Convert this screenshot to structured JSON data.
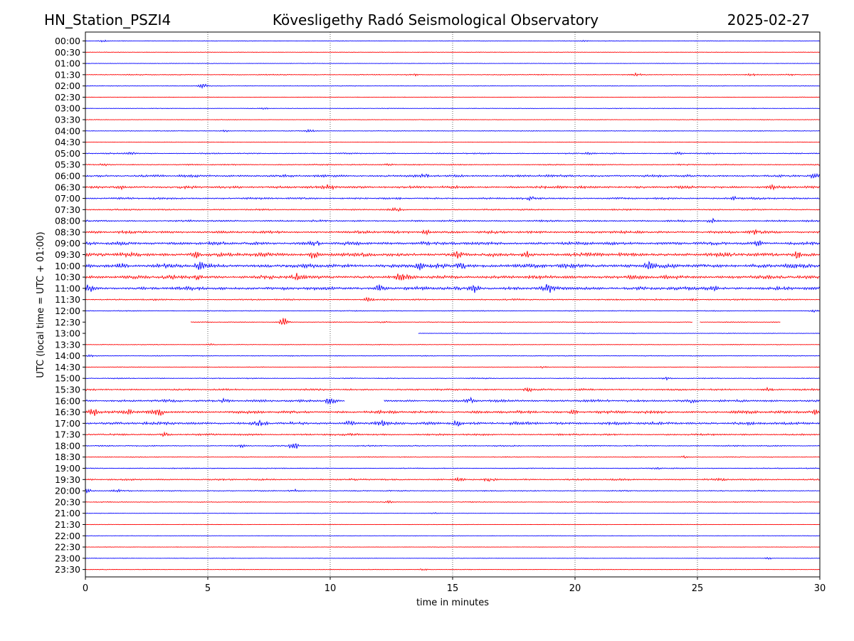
{
  "header": {
    "station": "HN_Station_PSZI4",
    "title": "Kövesligethy Radó Seismological Observatory",
    "date": "2025-02-27"
  },
  "chart_data": {
    "type": "line",
    "title": "Kövesligethy Radó Seismological Observatory",
    "xlabel": "time in minutes",
    "ylabel": "UTC (local time = UTC + 01:00)",
    "xlim": [
      0,
      30
    ],
    "xticks": [
      0,
      5,
      10,
      15,
      20,
      25,
      30
    ],
    "grid": "vertical dotted lines at 5, 10, 15, 20, 25",
    "colors": {
      "even_hour": "#0000ff",
      "half_hour": "#ff0000"
    },
    "rows": [
      {
        "label": "00:00",
        "color": "#0000ff",
        "coverage": [
          [
            0,
            30
          ]
        ],
        "activity": 0.5,
        "events": [
          [
            0.7,
            1.2
          ],
          [
            20.4,
            1.0
          ]
        ]
      },
      {
        "label": "00:30",
        "color": "#ff0000",
        "coverage": [
          [
            0,
            30
          ]
        ],
        "activity": 0.4,
        "events": []
      },
      {
        "label": "01:00",
        "color": "#0000ff",
        "coverage": [
          [
            0,
            30
          ]
        ],
        "activity": 0.4,
        "events": []
      },
      {
        "label": "01:30",
        "color": "#ff0000",
        "coverage": [
          [
            0,
            30
          ]
        ],
        "activity": 0.8,
        "events": [
          [
            13.4,
            1.3
          ],
          [
            22.5,
            1.6
          ],
          [
            27.2,
            1.5
          ],
          [
            28.8,
            1.2
          ]
        ]
      },
      {
        "label": "02:00",
        "color": "#0000ff",
        "coverage": [
          [
            0,
            30
          ]
        ],
        "activity": 0.5,
        "events": [
          [
            4.8,
            3.0
          ]
        ]
      },
      {
        "label": "02:30",
        "color": "#ff0000",
        "coverage": [
          [
            0,
            30
          ]
        ],
        "activity": 0.4,
        "events": []
      },
      {
        "label": "03:00",
        "color": "#0000ff",
        "coverage": [
          [
            0,
            30
          ]
        ],
        "activity": 0.5,
        "events": [
          [
            7.3,
            1.5
          ]
        ]
      },
      {
        "label": "03:30",
        "color": "#ff0000",
        "coverage": [
          [
            0,
            30
          ]
        ],
        "activity": 0.5,
        "events": [
          [
            27.8,
            1.0
          ]
        ]
      },
      {
        "label": "04:00",
        "color": "#0000ff",
        "coverage": [
          [
            0,
            30
          ]
        ],
        "activity": 0.6,
        "events": [
          [
            9.2,
            2.5
          ],
          [
            5.7,
            1.2
          ]
        ]
      },
      {
        "label": "04:30",
        "color": "#ff0000",
        "coverage": [
          [
            0,
            30
          ]
        ],
        "activity": 0.4,
        "events": []
      },
      {
        "label": "05:00",
        "color": "#0000ff",
        "coverage": [
          [
            0,
            30
          ]
        ],
        "activity": 1.0,
        "events": [
          [
            1.9,
            1.8
          ],
          [
            20.6,
            1.5
          ],
          [
            24.2,
            1.8
          ]
        ]
      },
      {
        "label": "05:30",
        "color": "#ff0000",
        "coverage": [
          [
            0,
            30
          ]
        ],
        "activity": 1.0,
        "events": [
          [
            0.8,
            1.5
          ],
          [
            12.4,
            1.4
          ]
        ]
      },
      {
        "label": "06:00",
        "color": "#0000ff",
        "coverage": [
          [
            0,
            30
          ]
        ],
        "activity": 2.0,
        "events": [
          [
            13.8,
            2.5
          ],
          [
            29.8,
            3.5
          ]
        ]
      },
      {
        "label": "06:30",
        "color": "#ff0000",
        "coverage": [
          [
            0,
            30
          ]
        ],
        "activity": 2.2,
        "events": [
          [
            1.4,
            3.0
          ],
          [
            10.0,
            3.0
          ],
          [
            28.1,
            3.2
          ]
        ]
      },
      {
        "label": "07:00",
        "color": "#0000ff",
        "coverage": [
          [
            0,
            30
          ]
        ],
        "activity": 1.6,
        "events": [
          [
            26.5,
            2.0
          ],
          [
            18.2,
            1.5
          ]
        ]
      },
      {
        "label": "07:30",
        "color": "#ff0000",
        "coverage": [
          [
            0,
            30
          ]
        ],
        "activity": 1.2,
        "events": [
          [
            12.7,
            2.0
          ]
        ]
      },
      {
        "label": "08:00",
        "color": "#0000ff",
        "coverage": [
          [
            0,
            30
          ]
        ],
        "activity": 1.5,
        "events": [
          [
            25.6,
            2.8
          ]
        ]
      },
      {
        "label": "08:30",
        "color": "#ff0000",
        "coverage": [
          [
            0,
            30
          ]
        ],
        "activity": 2.2,
        "events": [
          [
            13.9,
            2.5
          ],
          [
            27.3,
            3.0
          ]
        ]
      },
      {
        "label": "09:00",
        "color": "#0000ff",
        "coverage": [
          [
            0,
            30
          ]
        ],
        "activity": 2.6,
        "events": [
          [
            9.4,
            3.5
          ],
          [
            13.8,
            3.0
          ],
          [
            27.5,
            3.5
          ]
        ]
      },
      {
        "label": "09:30",
        "color": "#ff0000",
        "coverage": [
          [
            0,
            30
          ]
        ],
        "activity": 3.2,
        "events": [
          [
            4.5,
            4.5
          ],
          [
            9.3,
            5.0
          ],
          [
            15.2,
            4.5
          ],
          [
            18.0,
            4.0
          ],
          [
            29.1,
            6.0
          ]
        ]
      },
      {
        "label": "10:00",
        "color": "#0000ff",
        "coverage": [
          [
            0,
            30
          ]
        ],
        "activity": 3.4,
        "events": [
          [
            1.5,
            4.5
          ],
          [
            4.7,
            4.5
          ],
          [
            13.6,
            5.0
          ],
          [
            15.3,
            6.0
          ],
          [
            23.0,
            4.5
          ]
        ]
      },
      {
        "label": "10:30",
        "color": "#ff0000",
        "coverage": [
          [
            0,
            30
          ]
        ],
        "activity": 3.0,
        "events": [
          [
            4.6,
            4.0
          ],
          [
            8.6,
            4.5
          ],
          [
            12.9,
            4.0
          ]
        ]
      },
      {
        "label": "11:00",
        "color": "#0000ff",
        "coverage": [
          [
            0,
            30
          ]
        ],
        "activity": 2.8,
        "events": [
          [
            0.1,
            5.5
          ],
          [
            12.0,
            4.0
          ],
          [
            15.9,
            5.0
          ],
          [
            18.9,
            6.0
          ],
          [
            25.6,
            5.0
          ]
        ]
      },
      {
        "label": "11:30",
        "color": "#ff0000",
        "coverage": [
          [
            0,
            30
          ]
        ],
        "activity": 1.2,
        "events": [
          [
            11.6,
            3.0
          ],
          [
            24.8,
            1.8
          ]
        ]
      },
      {
        "label": "12:00",
        "color": "#0000ff",
        "coverage": [
          [
            0,
            30
          ]
        ],
        "activity": 0.7,
        "events": [
          [
            29.8,
            1.8
          ]
        ]
      },
      {
        "label": "12:30",
        "color": "#ff0000",
        "coverage": [
          [
            4.3,
            24.8
          ],
          [
            25.1,
            28.4
          ]
        ],
        "activity": 0.6,
        "events": [
          [
            8.1,
            7.0
          ],
          [
            12.2,
            1.2
          ]
        ]
      },
      {
        "label": "13:00",
        "color": "#0000ff",
        "coverage": [
          [
            13.6,
            30
          ]
        ],
        "activity": 0.5,
        "events": []
      },
      {
        "label": "13:30",
        "color": "#ff0000",
        "coverage": [
          [
            0,
            30
          ]
        ],
        "activity": 0.6,
        "events": [
          [
            5.1,
            1.2
          ]
        ]
      },
      {
        "label": "14:00",
        "color": "#0000ff",
        "coverage": [
          [
            0,
            30
          ]
        ],
        "activity": 0.7,
        "events": [
          [
            0.2,
            1.5
          ]
        ]
      },
      {
        "label": "14:30",
        "color": "#ff0000",
        "coverage": [
          [
            0,
            30
          ]
        ],
        "activity": 0.6,
        "events": [
          [
            18.7,
            1.4
          ]
        ]
      },
      {
        "label": "15:00",
        "color": "#0000ff",
        "coverage": [
          [
            0,
            30
          ]
        ],
        "activity": 0.8,
        "events": [
          [
            23.7,
            2.5
          ]
        ]
      },
      {
        "label": "15:30",
        "color": "#ff0000",
        "coverage": [
          [
            0,
            30
          ]
        ],
        "activity": 1.5,
        "events": [
          [
            18.1,
            2.5
          ],
          [
            27.9,
            2.2
          ]
        ]
      },
      {
        "label": "16:00",
        "color": "#0000ff",
        "coverage": [
          [
            0,
            10.6
          ],
          [
            12.2,
            30
          ]
        ],
        "activity": 2.0,
        "events": [
          [
            5.7,
            3.0
          ],
          [
            10.0,
            5.5
          ],
          [
            15.7,
            3.0
          ],
          [
            24.8,
            2.5
          ]
        ]
      },
      {
        "label": "16:30",
        "color": "#ff0000",
        "coverage": [
          [
            0,
            30
          ]
        ],
        "activity": 2.4,
        "events": [
          [
            0.3,
            5.5
          ],
          [
            1.8,
            3.5
          ],
          [
            3.0,
            4.0
          ],
          [
            20.0,
            3.0
          ],
          [
            29.8,
            3.0
          ]
        ]
      },
      {
        "label": "17:00",
        "color": "#0000ff",
        "coverage": [
          [
            0,
            30
          ]
        ],
        "activity": 2.4,
        "events": [
          [
            7.2,
            3.0
          ],
          [
            10.8,
            3.5
          ],
          [
            12.1,
            3.0
          ],
          [
            15.2,
            5.0
          ]
        ]
      },
      {
        "label": "17:30",
        "color": "#ff0000",
        "coverage": [
          [
            0,
            30
          ]
        ],
        "activity": 1.5,
        "events": [
          [
            3.2,
            2.5
          ],
          [
            11.0,
            2.0
          ]
        ]
      },
      {
        "label": "18:00",
        "color": "#0000ff",
        "coverage": [
          [
            0,
            30
          ]
        ],
        "activity": 1.0,
        "events": [
          [
            8.5,
            6.0
          ],
          [
            6.4,
            1.5
          ]
        ]
      },
      {
        "label": "18:30",
        "color": "#ff0000",
        "coverage": [
          [
            0,
            30
          ]
        ],
        "activity": 0.7,
        "events": [
          [
            24.5,
            1.5
          ]
        ]
      },
      {
        "label": "19:00",
        "color": "#0000ff",
        "coverage": [
          [
            0,
            30
          ]
        ],
        "activity": 0.8,
        "events": [
          [
            23.3,
            1.8
          ]
        ]
      },
      {
        "label": "19:30",
        "color": "#ff0000",
        "coverage": [
          [
            0,
            30
          ]
        ],
        "activity": 1.4,
        "events": [
          [
            15.3,
            2.5
          ],
          [
            16.5,
            2.0
          ],
          [
            26.0,
            2.0
          ]
        ]
      },
      {
        "label": "20:00",
        "color": "#0000ff",
        "coverage": [
          [
            0,
            30
          ]
        ],
        "activity": 0.9,
        "events": [
          [
            0.1,
            2.5
          ],
          [
            1.3,
            2.0
          ],
          [
            8.5,
            1.8
          ]
        ]
      },
      {
        "label": "20:30",
        "color": "#ff0000",
        "coverage": [
          [
            0,
            30
          ]
        ],
        "activity": 0.7,
        "events": [
          [
            12.4,
            1.5
          ]
        ]
      },
      {
        "label": "21:00",
        "color": "#0000ff",
        "coverage": [
          [
            0,
            30
          ]
        ],
        "activity": 0.4,
        "events": [
          [
            14.3,
            1.0
          ]
        ]
      },
      {
        "label": "21:30",
        "color": "#ff0000",
        "coverage": [
          [
            0,
            30
          ]
        ],
        "activity": 0.4,
        "events": []
      },
      {
        "label": "22:00",
        "color": "#0000ff",
        "coverage": [
          [
            0,
            30
          ]
        ],
        "activity": 0.4,
        "events": []
      },
      {
        "label": "22:30",
        "color": "#ff0000",
        "coverage": [
          [
            0,
            30
          ]
        ],
        "activity": 0.4,
        "events": []
      },
      {
        "label": "23:00",
        "color": "#0000ff",
        "coverage": [
          [
            0,
            30
          ]
        ],
        "activity": 0.4,
        "events": [
          [
            27.9,
            1.2
          ]
        ]
      },
      {
        "label": "23:30",
        "color": "#ff0000",
        "coverage": [
          [
            0,
            30
          ]
        ],
        "activity": 0.5,
        "events": [
          [
            13.8,
            1.2
          ]
        ]
      }
    ]
  }
}
